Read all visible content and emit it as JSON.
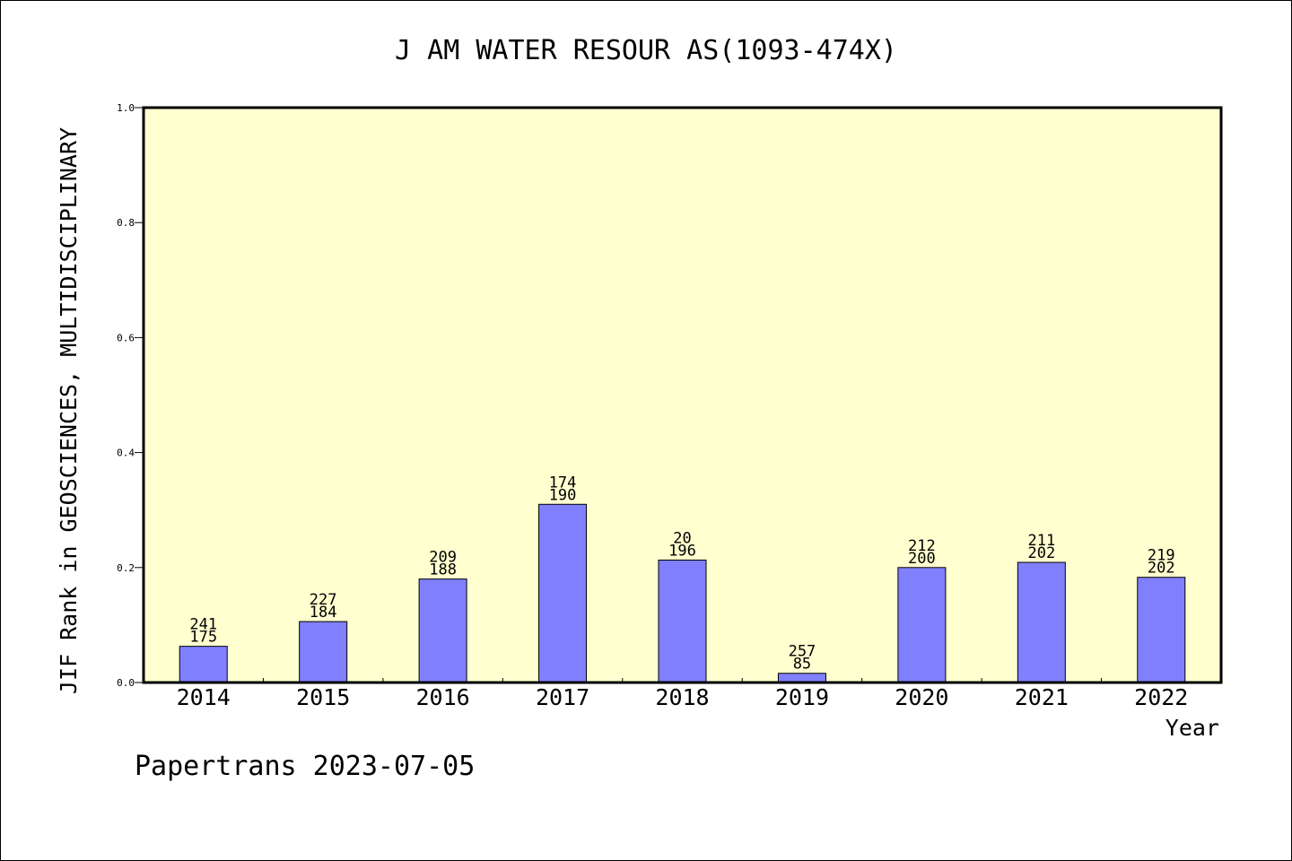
{
  "chart_data": {
    "type": "bar",
    "title": "J AM WATER RESOUR AS(1093-474X)",
    "xlabel": "Year",
    "ylabel": "JIF Rank in GEOSCIENCES, MULTIDISCIPLINARY",
    "ylim": [
      0,
      1.0
    ],
    "yticks": [
      "0.0",
      "0.2",
      "0.4",
      "0.6",
      "0.8",
      "1.0"
    ],
    "categories": [
      "2014",
      "2015",
      "2016",
      "2017",
      "2018",
      "2019",
      "2020",
      "2021",
      "2022"
    ],
    "values": [
      0.063,
      0.106,
      0.18,
      0.31,
      0.213,
      0.016,
      0.2,
      0.209,
      0.183
    ],
    "labels_top": [
      "241",
      "227",
      "209",
      "174",
      "20",
      "257",
      "212",
      "211",
      "219"
    ],
    "labels_bottom": [
      "175",
      "184",
      "188",
      "190",
      "196",
      "85",
      "200",
      "202",
      "202"
    ],
    "grid": false,
    "legend": "none",
    "colors": {
      "plot_background": "#ffffd0",
      "bar_fill": "#8080ff",
      "bar_stroke": "#000000"
    }
  },
  "footer": {
    "credit": "Papertrans 2023-07-05"
  }
}
